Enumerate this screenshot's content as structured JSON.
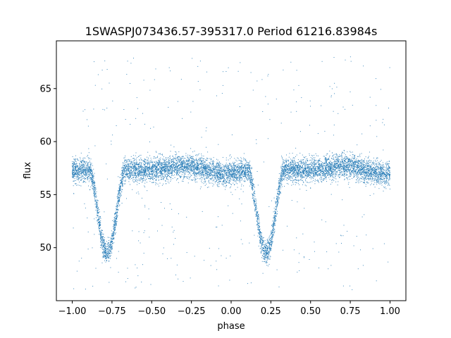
{
  "chart_data": {
    "type": "scatter",
    "title": "1SWASPJ073436.57-395317.0 Period 61216.83984s",
    "xlabel": "phase",
    "ylabel": "flux",
    "xlim": [
      -1.1,
      1.1
    ],
    "ylim": [
      45.0,
      69.5
    ],
    "xticks": [
      -1.0,
      -0.75,
      -0.5,
      -0.25,
      0.0,
      0.25,
      0.5,
      0.75,
      1.0
    ],
    "xtick_labels": [
      "−1.00",
      "−0.75",
      "−0.50",
      "−0.25",
      "0.00",
      "0.25",
      "0.50",
      "0.75",
      "1.00"
    ],
    "yticks": [
      50,
      55,
      60,
      65
    ],
    "ytick_labels": [
      "50",
      "55",
      "60",
      "65"
    ],
    "grid": false,
    "series": [
      {
        "marker_color": "#1f77b4",
        "model": {
          "baseline": 57.3,
          "baseline_bumps": [
            {
              "center": -0.3,
              "height": 0.4,
              "width": 0.12
            },
            {
              "center": 0.7,
              "height": 0.4,
              "width": 0.12
            },
            {
              "center": -0.05,
              "height": -0.3,
              "width": 0.1
            },
            {
              "center": 0.95,
              "height": -0.3,
              "width": 0.1
            }
          ],
          "eclipses": [
            {
              "center": -0.78,
              "depth": 7.8,
              "halfwidth": 0.11
            },
            {
              "center": 0.22,
              "depth": 7.8,
              "halfwidth": 0.11
            }
          ],
          "scatter_sigma": 0.55,
          "outlier_fraction": 0.04,
          "outlier_range": [
            46.0,
            68.0
          ]
        },
        "x_range": [
          -1.0,
          1.0
        ],
        "n_points": 9000
      }
    ]
  }
}
